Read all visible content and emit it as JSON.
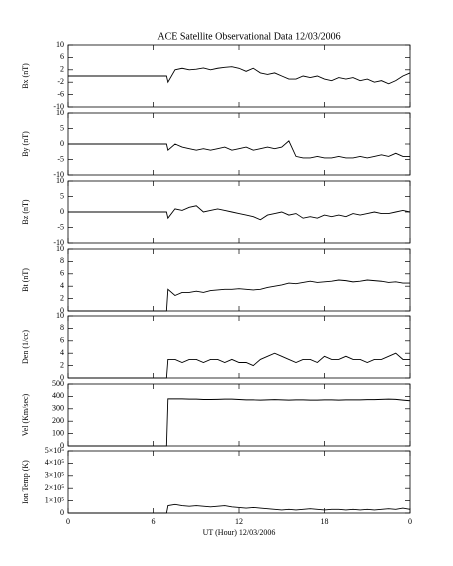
{
  "chart_data": [
    {
      "type": "line",
      "title": "ACE Satellite Observational Data   12/03/2006",
      "ylabel": "Bx (nT)",
      "color": "#000000",
      "x": [
        0,
        6.9,
        7,
        7.5,
        8,
        8.5,
        9,
        9.5,
        10,
        10.5,
        11,
        11.5,
        12,
        12.5,
        13,
        13.5,
        14,
        14.5,
        15,
        15.5,
        16,
        16.5,
        17,
        17.5,
        18,
        18.5,
        19,
        19.5,
        20,
        20.5,
        21,
        21.5,
        22,
        22.5,
        23,
        23.5,
        24
      ],
      "values": [
        0,
        0,
        -2,
        2,
        2.5,
        2,
        2.2,
        2.6,
        2,
        2.5,
        2.8,
        3,
        2.5,
        1.5,
        2.5,
        1,
        0.5,
        1,
        0,
        -1,
        -1,
        0,
        -0.5,
        0,
        -1,
        -1.5,
        -0.5,
        -1,
        -0.5,
        -1.5,
        -1,
        -2,
        -1.5,
        -2.5,
        -1.5,
        0,
        1
      ],
      "xlim": [
        0,
        24
      ],
      "ylim": [
        -10,
        10
      ],
      "yticks": [
        -10,
        -6,
        -2,
        2,
        6,
        10
      ]
    },
    {
      "type": "line",
      "ylabel": "By (nT)",
      "color": "#000000",
      "x": [
        0,
        6.9,
        7,
        7.5,
        8,
        8.5,
        9,
        9.5,
        10,
        10.5,
        11,
        11.5,
        12,
        12.5,
        13,
        13.5,
        14,
        14.5,
        15,
        15.5,
        16,
        16.5,
        17,
        17.5,
        18,
        18.5,
        19,
        19.5,
        20,
        20.5,
        21,
        21.5,
        22,
        22.5,
        23,
        23.5,
        24
      ],
      "values": [
        0,
        0,
        -2,
        0,
        -1,
        -1.5,
        -2,
        -1.5,
        -2,
        -1.5,
        -1,
        -2,
        -1.5,
        -1,
        -2,
        -1.5,
        -1,
        -1.5,
        -1,
        1,
        -4,
        -4.5,
        -4.5,
        -4,
        -4.5,
        -4.5,
        -4,
        -4.5,
        -4.5,
        -4,
        -4.5,
        -4,
        -3.5,
        -4,
        -3,
        -4,
        -4
      ],
      "xlim": [
        0,
        24
      ],
      "ylim": [
        -10,
        10
      ],
      "yticks": [
        -10,
        -5,
        0,
        5,
        10
      ]
    },
    {
      "type": "line",
      "ylabel": "Bz (nT)",
      "color": "#000000",
      "x": [
        0,
        6.9,
        7,
        7.5,
        8,
        8.5,
        9,
        9.5,
        10,
        10.5,
        11,
        11.5,
        12,
        12.5,
        13,
        13.5,
        14,
        14.5,
        15,
        15.5,
        16,
        16.5,
        17,
        17.5,
        18,
        18.5,
        19,
        19.5,
        20,
        20.5,
        21,
        21.5,
        22,
        22.5,
        23,
        23.5,
        24
      ],
      "values": [
        0,
        0,
        -2,
        1,
        0.5,
        1.5,
        2,
        0,
        0.5,
        1,
        0.5,
        0,
        -0.5,
        -1,
        -1.5,
        -2.5,
        -1,
        -0.5,
        0,
        -1,
        -0.5,
        -2,
        -1.5,
        -2,
        -1,
        -1.5,
        -1,
        -1.5,
        -0.5,
        -1,
        -0.5,
        0,
        -0.5,
        -0.5,
        0,
        0.5,
        0
      ],
      "xlim": [
        0,
        24
      ],
      "ylim": [
        -10,
        10
      ],
      "yticks": [
        -10,
        -5,
        0,
        5,
        10
      ]
    },
    {
      "type": "line",
      "ylabel": "Bt (nT)",
      "color": "#000000",
      "x": [
        0,
        6.9,
        7,
        7.5,
        8,
        8.5,
        9,
        9.5,
        10,
        10.5,
        11,
        11.5,
        12,
        12.5,
        13,
        13.5,
        14,
        14.5,
        15,
        15.5,
        16,
        16.5,
        17,
        17.5,
        18,
        18.5,
        19,
        19.5,
        20,
        20.5,
        21,
        21.5,
        22,
        22.5,
        23,
        23.5,
        24
      ],
      "values": [
        0,
        0,
        3.5,
        2.5,
        3,
        3,
        3.2,
        3,
        3.3,
        3.4,
        3.5,
        3.5,
        3.6,
        3.5,
        3.4,
        3.5,
        3.8,
        4,
        4.2,
        4.5,
        4.4,
        4.6,
        4.8,
        4.6,
        4.7,
        4.8,
        5,
        4.9,
        4.7,
        4.8,
        5,
        4.9,
        4.8,
        4.6,
        4.7,
        4.5,
        4.5
      ],
      "xlim": [
        0,
        24
      ],
      "ylim": [
        0,
        10
      ],
      "yticks": [
        0,
        2,
        4,
        6,
        8,
        10
      ]
    },
    {
      "type": "line",
      "ylabel": "Den (1/cc)",
      "color": "#000000",
      "x": [
        0,
        6.9,
        7,
        7.5,
        8,
        8.5,
        9,
        9.5,
        10,
        10.5,
        11,
        11.5,
        12,
        12.5,
        13,
        13.5,
        14,
        14.5,
        15,
        15.5,
        16,
        16.5,
        17,
        17.5,
        18,
        18.5,
        19,
        19.5,
        20,
        20.5,
        21,
        21.5,
        22,
        22.5,
        23,
        23.5,
        24
      ],
      "values": [
        0,
        0,
        3,
        3,
        2.5,
        3,
        3,
        2.5,
        3,
        3,
        2.5,
        3,
        2.5,
        2.5,
        2,
        3,
        3.5,
        4,
        3.5,
        3,
        2.5,
        3,
        3,
        2.5,
        3.5,
        3,
        3,
        3.5,
        3,
        3,
        2.5,
        3,
        3,
        3.5,
        4,
        3,
        3
      ],
      "xlim": [
        0,
        24
      ],
      "ylim": [
        0,
        10
      ],
      "yticks": [
        0,
        2,
        4,
        6,
        8,
        10
      ]
    },
    {
      "type": "line",
      "ylabel": "Vel (Km/sec)",
      "color": "#000000",
      "x": [
        0,
        6.9,
        7,
        7.5,
        8,
        8.5,
        9,
        9.5,
        10,
        10.5,
        11,
        11.5,
        12,
        12.5,
        13,
        13.5,
        14,
        14.5,
        15,
        15.5,
        16,
        16.5,
        17,
        17.5,
        18,
        18.5,
        19,
        19.5,
        20,
        20.5,
        21,
        21.5,
        22,
        22.5,
        23,
        23.5,
        24
      ],
      "values": [
        0,
        0,
        380,
        380,
        380,
        378,
        378,
        375,
        375,
        376,
        378,
        378,
        375,
        372,
        372,
        370,
        372,
        374,
        372,
        370,
        372,
        372,
        370,
        370,
        372,
        372,
        370,
        372,
        372,
        372,
        374,
        374,
        376,
        378,
        376,
        370,
        365
      ],
      "xlim": [
        0,
        24
      ],
      "ylim": [
        0,
        500
      ],
      "yticks": [
        0,
        100,
        200,
        300,
        400,
        500
      ]
    },
    {
      "type": "line",
      "ylabel": "Ion Temp (K)",
      "xlabel": "UT (Hour)  12/03/2006",
      "color": "#000000",
      "x": [
        0,
        6.9,
        7,
        7.5,
        8,
        8.5,
        9,
        9.5,
        10,
        10.5,
        11,
        11.5,
        12,
        12.5,
        13,
        13.5,
        14,
        14.5,
        15,
        15.5,
        16,
        16.5,
        17,
        17.5,
        18,
        18.5,
        19,
        19.5,
        20,
        20.5,
        21,
        21.5,
        22,
        22.5,
        23,
        23.5,
        24
      ],
      "values": [
        0,
        0,
        60000,
        70000,
        60000,
        55000,
        60000,
        55000,
        50000,
        55000,
        60000,
        50000,
        45000,
        40000,
        45000,
        40000,
        35000,
        30000,
        25000,
        30000,
        25000,
        30000,
        35000,
        30000,
        25000,
        30000,
        30000,
        25000,
        30000,
        25000,
        30000,
        25000,
        30000,
        35000,
        30000,
        40000,
        30000
      ],
      "xlim": [
        0,
        24
      ],
      "ylim": [
        0,
        500000
      ],
      "yticks": [
        0,
        {
          "value": 100000,
          "label": "1×10⁵"
        },
        {
          "value": 200000,
          "label": "2×10⁵"
        },
        {
          "value": 300000,
          "label": "3×10⁵"
        },
        {
          "value": 400000,
          "label": "4×10⁵"
        },
        {
          "value": 500000,
          "label": "5×10⁵"
        }
      ],
      "xticks": [
        0,
        6,
        12,
        18,
        {
          "value": 24,
          "label": "0"
        }
      ]
    }
  ]
}
